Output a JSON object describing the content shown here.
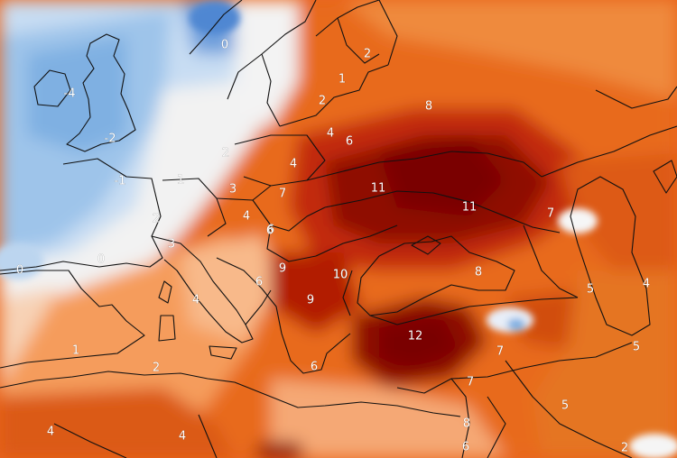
{
  "map": {
    "anomaly_labels": [
      "0",
      "2",
      "-4",
      "-2",
      "-1",
      "2",
      "4",
      "6",
      "10",
      "2",
      "1",
      "8",
      "1",
      "2",
      "4",
      "6",
      "3",
      "7",
      "11",
      "11",
      "7",
      "4",
      "6",
      "3",
      "9",
      "6",
      "9",
      "10",
      "8",
      "5",
      "4",
      "0",
      "0",
      "4",
      "1",
      "2",
      "12",
      "7",
      "5",
      "6",
      "7",
      "5",
      "8",
      "6",
      "4",
      "4",
      "2"
    ]
  }
}
